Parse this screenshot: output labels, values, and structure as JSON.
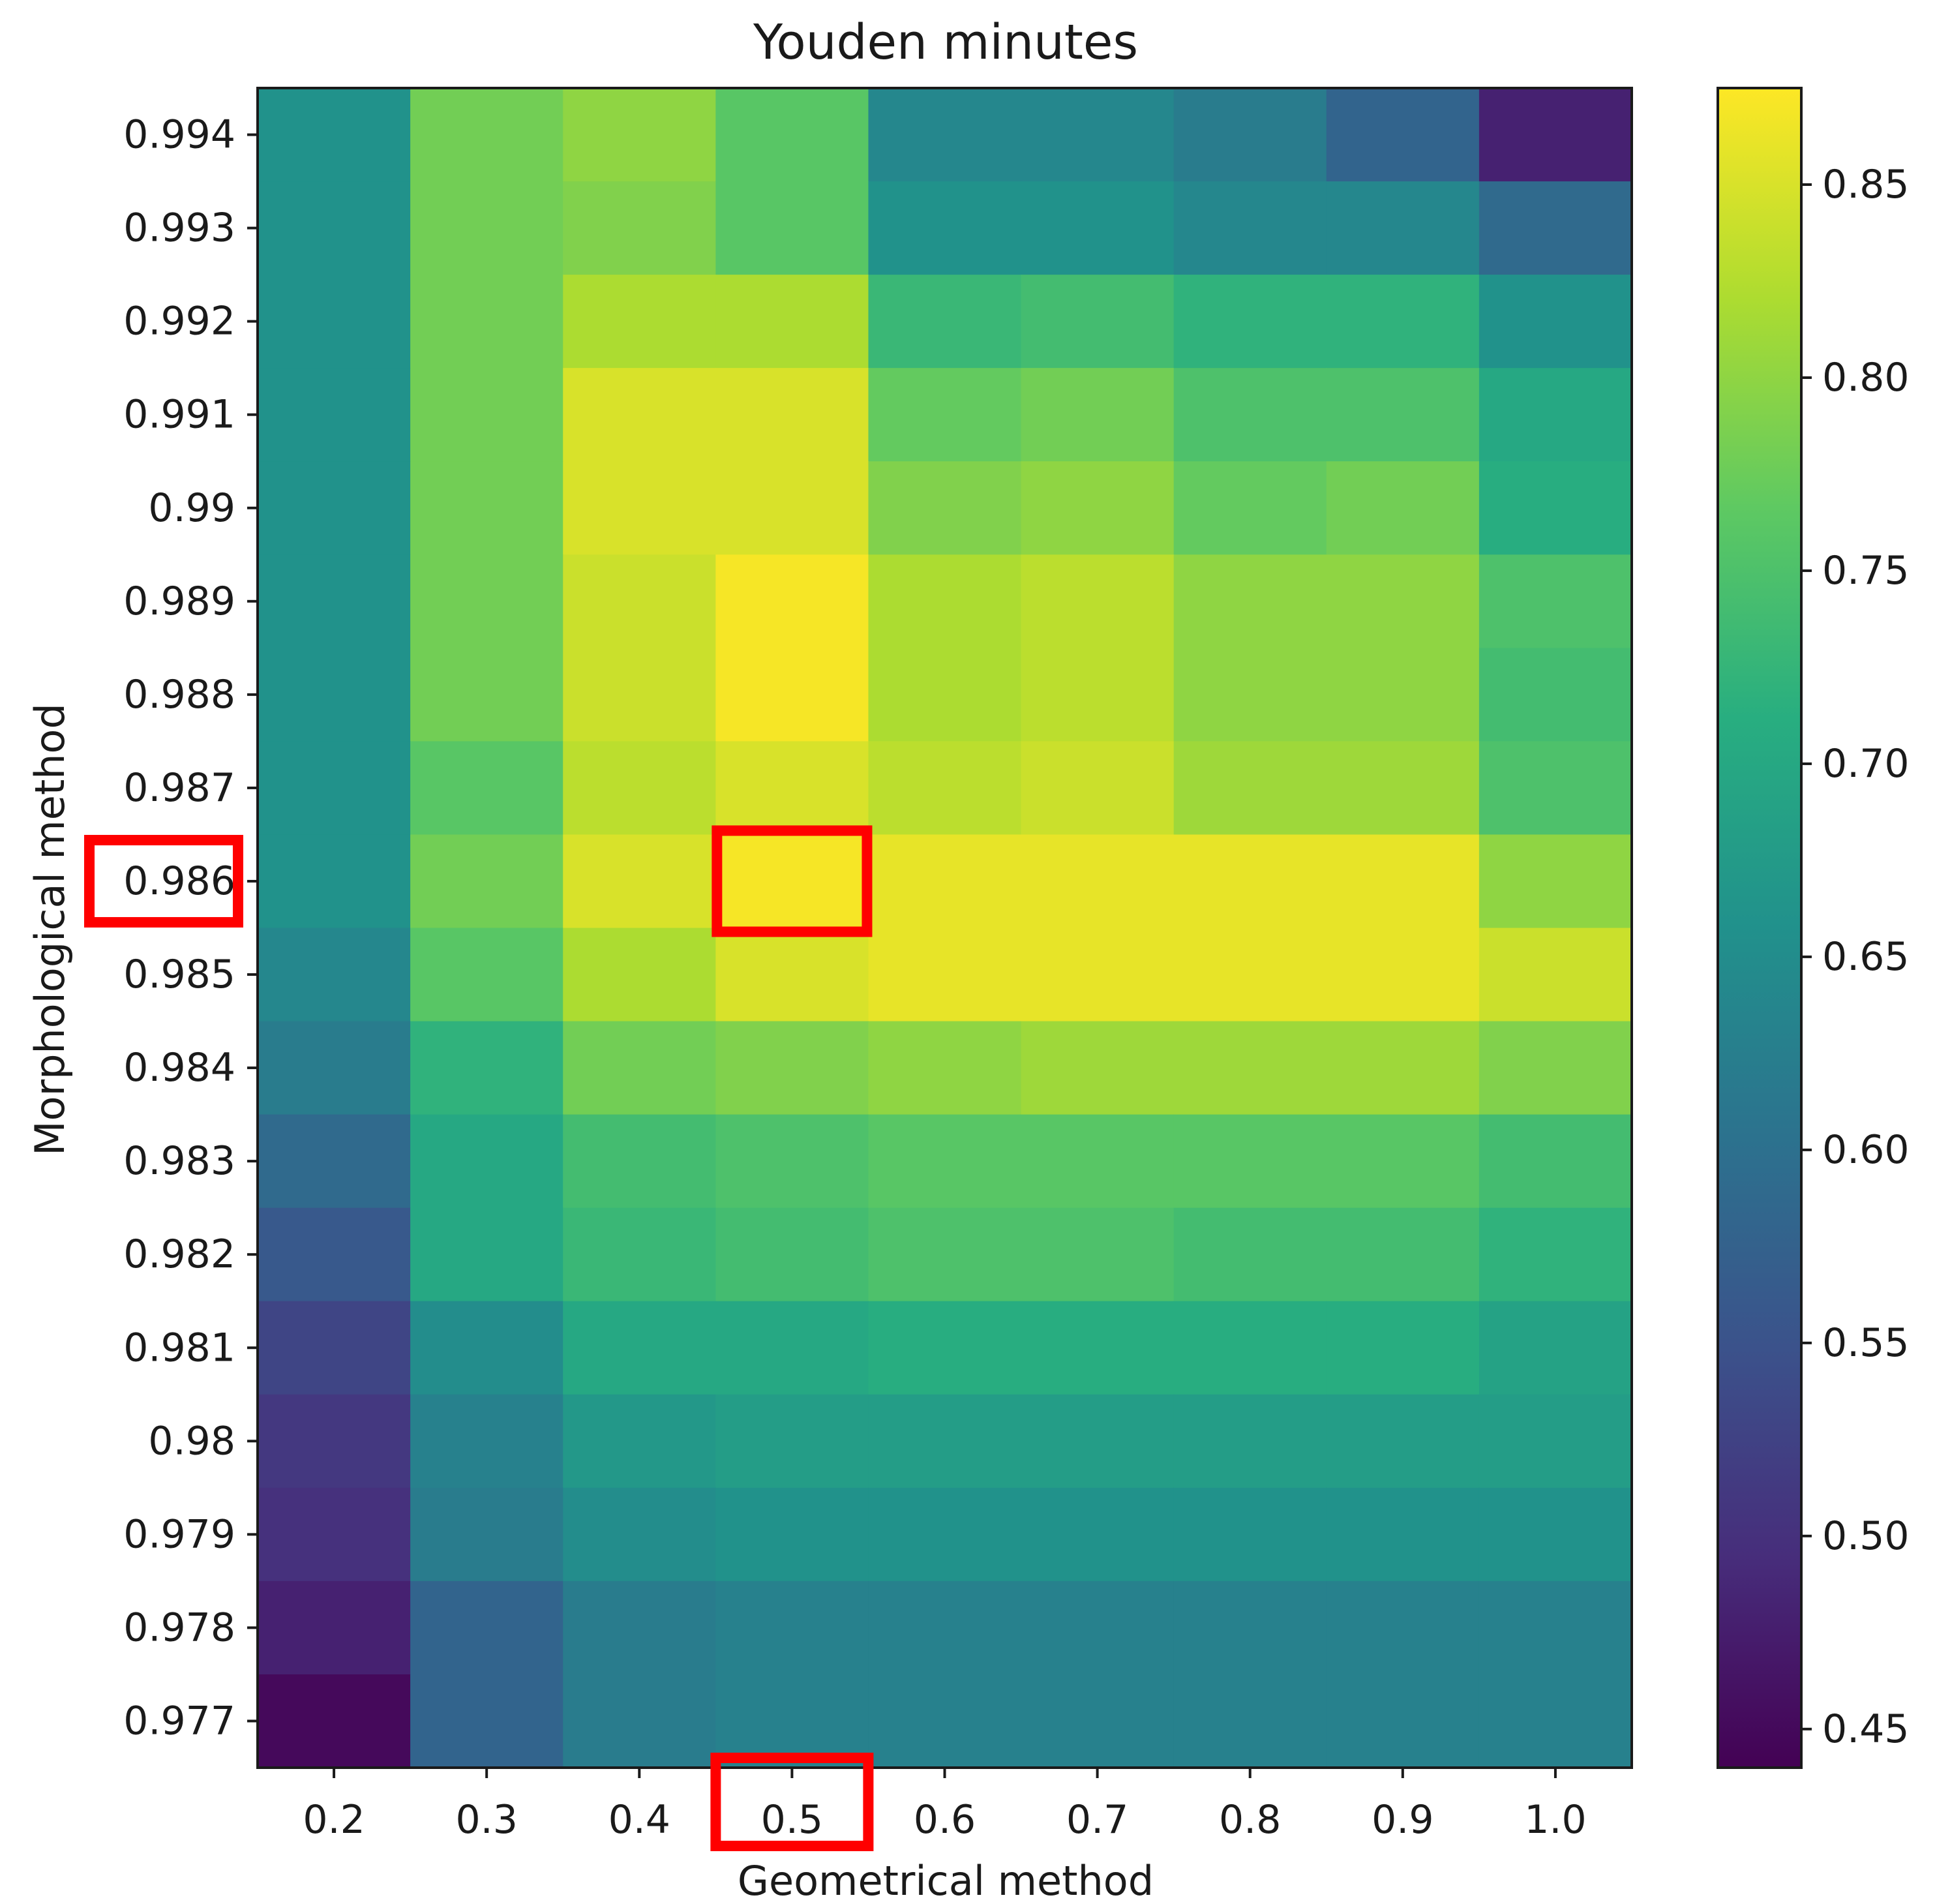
{
  "chart_data": {
    "type": "heatmap",
    "title": "Youden minutes",
    "xlabel": "Geometrical method",
    "ylabel": "Morphological method",
    "x_ticks": [
      "0.2",
      "0.3",
      "0.4",
      "0.5",
      "0.6",
      "0.7",
      "0.8",
      "0.9",
      "1.0"
    ],
    "y_ticks": [
      "0.994",
      "0.993",
      "0.992",
      "0.991",
      "0.99",
      "0.989",
      "0.988",
      "0.987",
      "0.986",
      "0.985",
      "0.984",
      "0.983",
      "0.982",
      "0.981",
      "0.98",
      "0.979",
      "0.978",
      "0.977"
    ],
    "colormap": "viridis",
    "colorbar": {
      "min": 0.44,
      "max": 0.875,
      "ticks": [
        "0.45",
        "0.50",
        "0.55",
        "0.60",
        "0.65",
        "0.70",
        "0.75",
        "0.80",
        "0.85"
      ]
    },
    "values": [
      [
        0.66,
        0.78,
        0.8,
        0.76,
        0.64,
        0.64,
        0.62,
        0.58,
        0.48
      ],
      [
        0.66,
        0.78,
        0.79,
        0.76,
        0.66,
        0.66,
        0.64,
        0.64,
        0.59
      ],
      [
        0.66,
        0.78,
        0.82,
        0.82,
        0.73,
        0.74,
        0.72,
        0.72,
        0.66
      ],
      [
        0.66,
        0.78,
        0.85,
        0.85,
        0.77,
        0.78,
        0.75,
        0.75,
        0.7
      ],
      [
        0.66,
        0.78,
        0.85,
        0.85,
        0.79,
        0.8,
        0.77,
        0.78,
        0.71
      ],
      [
        0.66,
        0.78,
        0.84,
        0.87,
        0.82,
        0.83,
        0.8,
        0.8,
        0.75
      ],
      [
        0.66,
        0.78,
        0.84,
        0.87,
        0.82,
        0.83,
        0.8,
        0.8,
        0.74
      ],
      [
        0.66,
        0.76,
        0.83,
        0.85,
        0.83,
        0.84,
        0.81,
        0.81,
        0.75
      ],
      [
        0.66,
        0.78,
        0.85,
        0.87,
        0.86,
        0.86,
        0.86,
        0.86,
        0.8
      ],
      [
        0.64,
        0.76,
        0.82,
        0.85,
        0.86,
        0.86,
        0.86,
        0.86,
        0.84
      ],
      [
        0.62,
        0.72,
        0.78,
        0.79,
        0.8,
        0.81,
        0.81,
        0.81,
        0.79
      ],
      [
        0.59,
        0.7,
        0.74,
        0.75,
        0.76,
        0.76,
        0.76,
        0.76,
        0.74
      ],
      [
        0.56,
        0.7,
        0.73,
        0.74,
        0.75,
        0.75,
        0.74,
        0.74,
        0.72
      ],
      [
        0.53,
        0.65,
        0.7,
        0.7,
        0.71,
        0.71,
        0.71,
        0.71,
        0.69
      ],
      [
        0.51,
        0.63,
        0.67,
        0.68,
        0.68,
        0.68,
        0.68,
        0.68,
        0.68
      ],
      [
        0.5,
        0.62,
        0.65,
        0.66,
        0.66,
        0.66,
        0.66,
        0.66,
        0.66
      ],
      [
        0.48,
        0.58,
        0.62,
        0.63,
        0.63,
        0.63,
        0.63,
        0.63,
        0.63
      ],
      [
        0.45,
        0.58,
        0.62,
        0.63,
        0.63,
        0.63,
        0.63,
        0.63,
        0.63
      ]
    ],
    "highlights": [
      {
        "target": "cell",
        "x": "0.5",
        "y": "0.986",
        "color": "#ff0000"
      },
      {
        "target": "y_tick",
        "label": "0.986",
        "color": "#ff0000"
      },
      {
        "target": "x_tick",
        "label": "0.5",
        "color": "#ff0000"
      }
    ]
  }
}
